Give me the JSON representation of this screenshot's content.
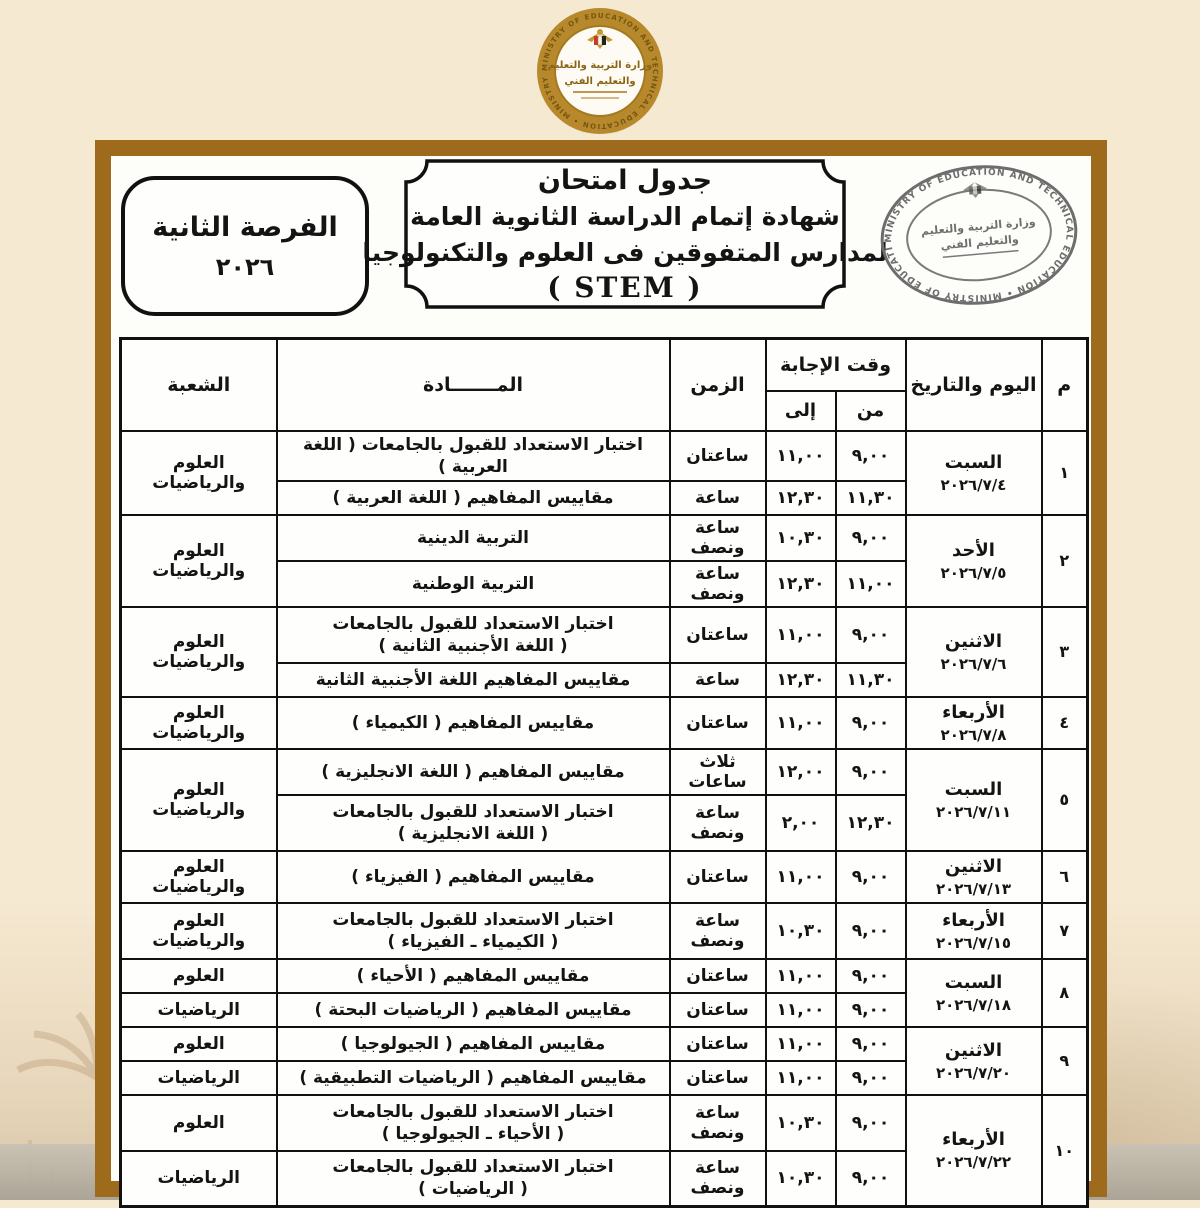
{
  "page": {
    "background_color": "#f6e9d1",
    "frame_color": "#9e6b1d"
  },
  "logos": {
    "english": "MINISTRY OF EDUCATION AND TECHNICAL EDUCATION",
    "arabic_line1": "وزارة التربية والتعليم",
    "arabic_line2": "والتعليم الفني"
  },
  "header": {
    "session_box": {
      "line1": "الفرصة الثانية",
      "line2": "٢٠٢٦"
    },
    "title_box": {
      "lines": [
        "جدول امتحان",
        "شهادة إتمام الدراسة الثانوية العامة",
        "لمدارس المتفوقين فى العلوم والتكنولوجيا",
        "( STEM )"
      ]
    }
  },
  "table": {
    "headers": {
      "num": "م",
      "day": "اليوم والتاريخ",
      "answer_time": "وقت الإجابة",
      "from": "من",
      "to": "إلى",
      "duration": "الزمن",
      "subject": "المـــــــادة",
      "branch": "الشعبة"
    },
    "groups": [
      {
        "num": "١",
        "day": [
          "السبت",
          "٢٠٢٦/٧/٤"
        ],
        "branch": "العلوم والرياضيات",
        "exams": [
          {
            "from": "٩,٠٠",
            "to": "١١,٠٠",
            "duration": "ساعتان",
            "subject": [
              "اختبار الاستعداد للقبول بالجامعات ( اللغة العربية )"
            ]
          },
          {
            "from": "١١,٣٠",
            "to": "١٢,٣٠",
            "duration": "ساعة",
            "subject": [
              "مقاييس المفاهيم ( اللغة العربية )"
            ]
          }
        ]
      },
      {
        "num": "٢",
        "day": [
          "الأحد",
          "٢٠٢٦/٧/٥"
        ],
        "branch": "العلوم والرياضيات",
        "exams": [
          {
            "from": "٩,٠٠",
            "to": "١٠,٣٠",
            "duration": "ساعة ونصف",
            "subject": [
              "التربية الدينية"
            ]
          },
          {
            "from": "١١,٠٠",
            "to": "١٢,٣٠",
            "duration": "ساعة ونصف",
            "subject": [
              "التربية الوطنية"
            ]
          }
        ]
      },
      {
        "num": "٣",
        "day": [
          "الاثنين",
          "٢٠٢٦/٧/٦"
        ],
        "branch": "العلوم والرياضيات",
        "exams": [
          {
            "from": "٩,٠٠",
            "to": "١١,٠٠",
            "duration": "ساعتان",
            "subject": [
              "اختبار الاستعداد للقبول بالجامعات",
              "( اللغة الأجنبية الثانية )"
            ]
          },
          {
            "from": "١١,٣٠",
            "to": "١٢,٣٠",
            "duration": "ساعة",
            "subject": [
              "مقاييس المفاهيم اللغة الأجنبية الثانية"
            ]
          }
        ]
      },
      {
        "num": "٤",
        "day": [
          "الأربعاء",
          "٢٠٢٦/٧/٨"
        ],
        "branch": "العلوم والرياضيات",
        "exams": [
          {
            "from": "٩,٠٠",
            "to": "١١,٠٠",
            "duration": "ساعتان",
            "subject": [
              "مقاييس المفاهيم ( الكيمياء )"
            ]
          }
        ]
      },
      {
        "num": "٥",
        "day": [
          "السبت",
          "٢٠٢٦/٧/١١"
        ],
        "branch": "العلوم والرياضيات",
        "exams": [
          {
            "from": "٩,٠٠",
            "to": "١٢,٠٠",
            "duration": "ثلاث ساعات",
            "subject": [
              "مقاييس المفاهيم ( اللغة الانجليزية )"
            ]
          },
          {
            "from": "١٢,٣٠",
            "to": "٢,٠٠",
            "duration": "ساعة ونصف",
            "subject": [
              "اختبار الاستعداد للقبول بالجامعات",
              "( اللغة الانجليزية )"
            ]
          }
        ]
      },
      {
        "num": "٦",
        "day": [
          "الاثنين",
          "٢٠٢٦/٧/١٣"
        ],
        "branch": "العلوم والرياضيات",
        "exams": [
          {
            "from": "٩,٠٠",
            "to": "١١,٠٠",
            "duration": "ساعتان",
            "subject": [
              "مقاييس المفاهيم ( الفيزياء )"
            ]
          }
        ]
      },
      {
        "num": "٧",
        "day": [
          "الأربعاء",
          "٢٠٢٦/٧/١٥"
        ],
        "branch": "العلوم والرياضيات",
        "exams": [
          {
            "from": "٩,٠٠",
            "to": "١٠,٣٠",
            "duration": "ساعة ونصف",
            "subject": [
              "اختبار الاستعداد للقبول بالجامعات",
              "( الكيمياء ـ الفيزياء )"
            ]
          }
        ]
      },
      {
        "num": "٨",
        "day": [
          "السبت",
          "٢٠٢٦/٧/١٨"
        ],
        "exams": [
          {
            "from": "٩,٠٠",
            "to": "١١,٠٠",
            "duration": "ساعتان",
            "subject": [
              "مقاييس المفاهيم ( الأحياء )"
            ],
            "branch": "العلوم"
          },
          {
            "from": "٩,٠٠",
            "to": "١١,٠٠",
            "duration": "ساعتان",
            "subject": [
              "مقاييس المفاهيم ( الرياضيات البحتة )"
            ],
            "branch": "الرياضيات"
          }
        ]
      },
      {
        "num": "٩",
        "day": [
          "الاثنين",
          "٢٠٢٦/٧/٢٠"
        ],
        "exams": [
          {
            "from": "٩,٠٠",
            "to": "١١,٠٠",
            "duration": "ساعتان",
            "subject": [
              "مقاييس المفاهيم ( الجيولوجيا )"
            ],
            "branch": "العلوم"
          },
          {
            "from": "٩,٠٠",
            "to": "١١,٠٠",
            "duration": "ساعتان",
            "subject": [
              "مقاييس المفاهيم ( الرياضيات التطبيقية )"
            ],
            "branch": "الرياضيات"
          }
        ]
      },
      {
        "num": "١٠",
        "day": [
          "الأربعاء",
          "٢٠٢٦/٧/٢٢"
        ],
        "exams": [
          {
            "from": "٩,٠٠",
            "to": "١٠,٣٠",
            "duration": "ساعة ونصف",
            "subject": [
              "اختبار الاستعداد للقبول بالجامعات",
              "( الأحياء ـ الجيولوجيا )"
            ],
            "branch": "العلوم"
          },
          {
            "from": "٩,٠٠",
            "to": "١٠,٣٠",
            "duration": "ساعة ونصف",
            "subject": [
              "اختبار الاستعداد للقبول بالجامعات",
              "( الرياضيات )"
            ],
            "branch": "الرياضيات"
          }
        ]
      }
    ]
  }
}
